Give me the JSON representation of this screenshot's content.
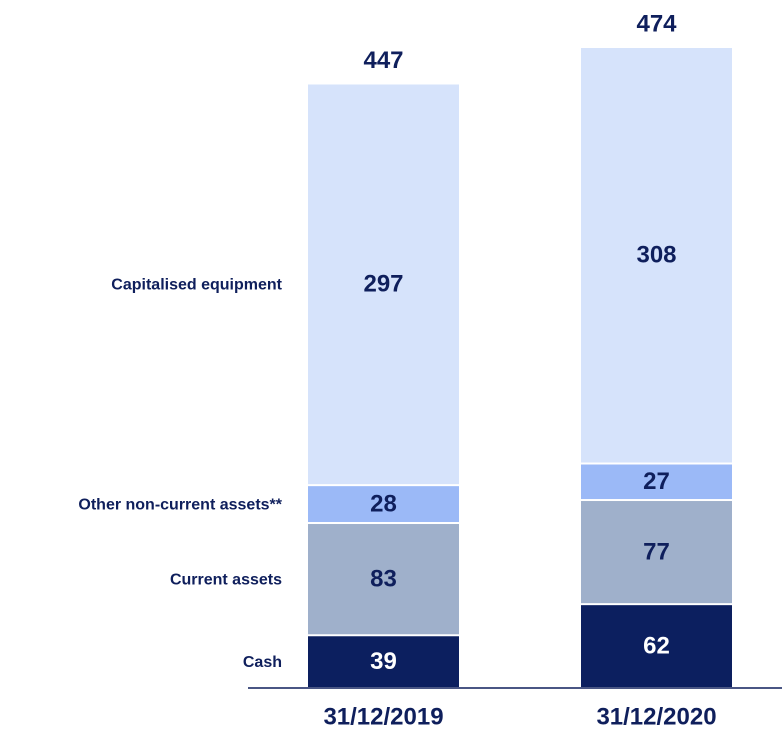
{
  "chart_data": {
    "type": "stacked_bar",
    "categories": [
      "31/12/2019",
      "31/12/2020"
    ],
    "series": [
      {
        "name": "Cash",
        "color": "#0c1f5f",
        "values": [
          39,
          62
        ]
      },
      {
        "name": "Current assets",
        "color": "#9fb0cb",
        "values": [
          83,
          77
        ]
      },
      {
        "name": "Other non-current assets**",
        "color": "#9bb9f7",
        "values": [
          28,
          27
        ]
      },
      {
        "name": "Capitalised equipment",
        "color": "#d6e3fb",
        "values": [
          297,
          308
        ]
      }
    ],
    "totals": [
      447,
      474
    ]
  }
}
